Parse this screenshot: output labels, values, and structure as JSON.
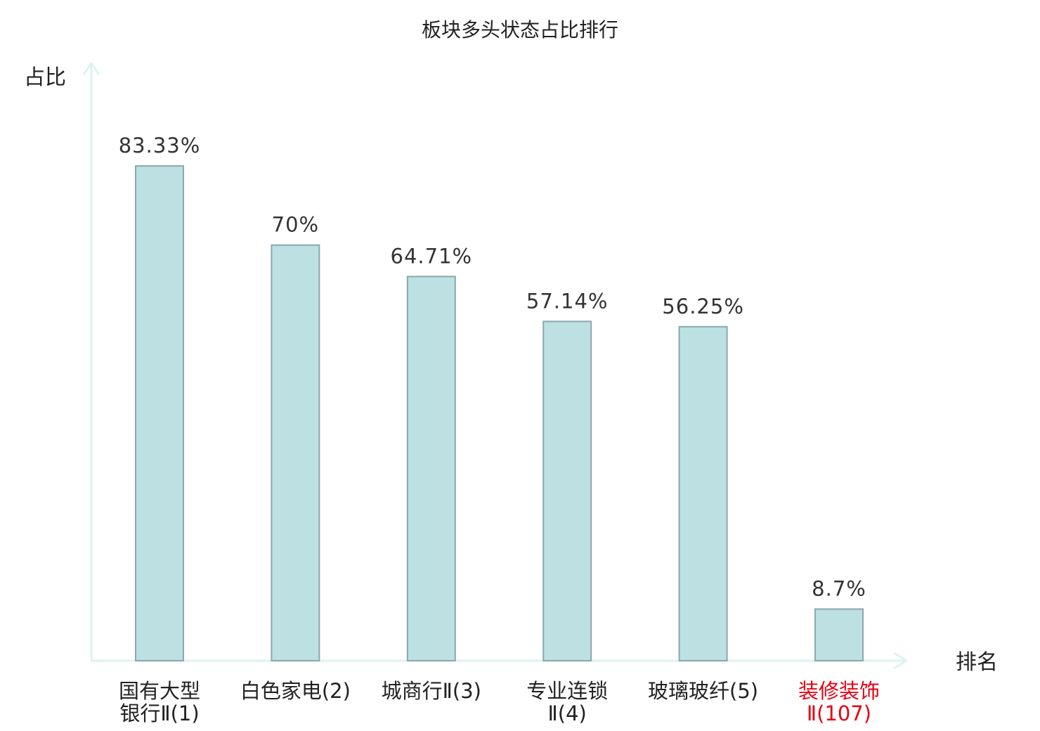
{
  "chart_data": {
    "type": "bar",
    "title": "板块多头状态占比排行",
    "ylabel": "占比",
    "xlabel": "排名",
    "ylim": [
      0,
      100
    ],
    "categories": [
      {
        "lines": [
          "国有大型",
          "银行Ⅱ(1)"
        ],
        "highlight": false
      },
      {
        "lines": [
          "白色家电(2)"
        ],
        "highlight": false
      },
      {
        "lines": [
          "城商行Ⅱ(3)"
        ],
        "highlight": false
      },
      {
        "lines": [
          "专业连锁",
          "Ⅱ(4)"
        ],
        "highlight": false
      },
      {
        "lines": [
          "玻璃玻纤(5)"
        ],
        "highlight": false
      },
      {
        "lines": [
          "装修装饰",
          "Ⅱ(107)"
        ],
        "highlight": true
      }
    ],
    "values": [
      83.33,
      70,
      64.71,
      57.14,
      56.25,
      8.7
    ],
    "value_labels": [
      "83.33%",
      "70%",
      "64.71%",
      "57.14%",
      "56.25%",
      "8.7%"
    ],
    "grid": false,
    "legend": "none"
  },
  "colors": {
    "bar_fill": "#bde0e2",
    "bar_stroke": "#8aa9ab",
    "axis": "#dff2ef",
    "text": "#222222",
    "highlight_text": "#e60012"
  }
}
